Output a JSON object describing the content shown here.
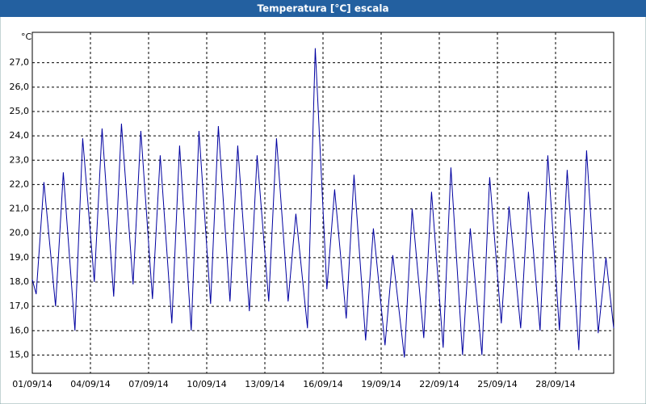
{
  "chart_data": {
    "type": "line",
    "title": "Temperatura [°C] escala",
    "y_label": "°C",
    "x": [
      0,
      0.2,
      0.6,
      1.2,
      1.6,
      2.2,
      2.6,
      3.2,
      3.6,
      4.2,
      4.6,
      5.2,
      5.6,
      6.2,
      6.6,
      7.2,
      7.6,
      8.2,
      8.6,
      9.2,
      9.6,
      10.2,
      10.6,
      11.2,
      11.6,
      12.2,
      12.6,
      13.2,
      13.6,
      14.2,
      14.6,
      15.2,
      15.6,
      16.2,
      16.6,
      17.2,
      17.6,
      18.2,
      18.6,
      19.2,
      19.6,
      20.2,
      20.6,
      21.2,
      21.6,
      22.2,
      22.6,
      23.2,
      23.6,
      24.2,
      24.6,
      25.2,
      25.6,
      26.2,
      26.6,
      27.2,
      27.6,
      28.2,
      28.6,
      29.2,
      29.6,
      30
    ],
    "series": [
      {
        "name": "Temperatura",
        "color": "#0000a0",
        "values": [
          18.1,
          17.5,
          22.1,
          17.0,
          22.5,
          16.0,
          23.9,
          18.0,
          24.3,
          17.4,
          24.5,
          17.9,
          24.2,
          17.3,
          23.2,
          16.3,
          23.6,
          16.0,
          24.2,
          17.1,
          24.4,
          17.2,
          23.6,
          16.8,
          23.2,
          17.2,
          23.9,
          17.2,
          20.8,
          16.1,
          27.6,
          17.7,
          21.8,
          16.5,
          22.4,
          15.6,
          20.2,
          15.4,
          19.1,
          14.9,
          21.0,
          15.7,
          21.7,
          15.3,
          22.7,
          15.0,
          20.2,
          15.0,
          22.3,
          16.3,
          21.1,
          16.1,
          21.7,
          16.0,
          23.2,
          16.0,
          22.6,
          15.2,
          23.4,
          15.9,
          19.0,
          16.1
        ]
      }
    ],
    "xlim": [
      0,
      30
    ],
    "xticks": [
      {
        "value": 0,
        "label": "01/09/14"
      },
      {
        "value": 3,
        "label": "04/09/14"
      },
      {
        "value": 6,
        "label": "07/09/14"
      },
      {
        "value": 9,
        "label": "10/09/14"
      },
      {
        "value": 12,
        "label": "13/09/14"
      },
      {
        "value": 15,
        "label": "16/09/14"
      },
      {
        "value": 18,
        "label": "19/09/14"
      },
      {
        "value": 21,
        "label": "22/09/14"
      },
      {
        "value": 24,
        "label": "25/09/14"
      },
      {
        "value": 27,
        "label": "28/09/14"
      }
    ],
    "ylim": [
      14.25,
      28.25
    ],
    "yticks": [
      {
        "value": 15,
        "label": "15,0"
      },
      {
        "value": 16,
        "label": "16,0"
      },
      {
        "value": 17,
        "label": "17,0"
      },
      {
        "value": 18,
        "label": "18,0"
      },
      {
        "value": 19,
        "label": "19,0"
      },
      {
        "value": 20,
        "label": "20,0"
      },
      {
        "value": 21,
        "label": "21,0"
      },
      {
        "value": 22,
        "label": "22,0"
      },
      {
        "value": 23,
        "label": "23,0"
      },
      {
        "value": 24,
        "label": "24,0"
      },
      {
        "value": 25,
        "label": "25,0"
      },
      {
        "value": 26,
        "label": "26,0"
      },
      {
        "value": 27,
        "label": "27,0"
      }
    ],
    "grid": true
  }
}
